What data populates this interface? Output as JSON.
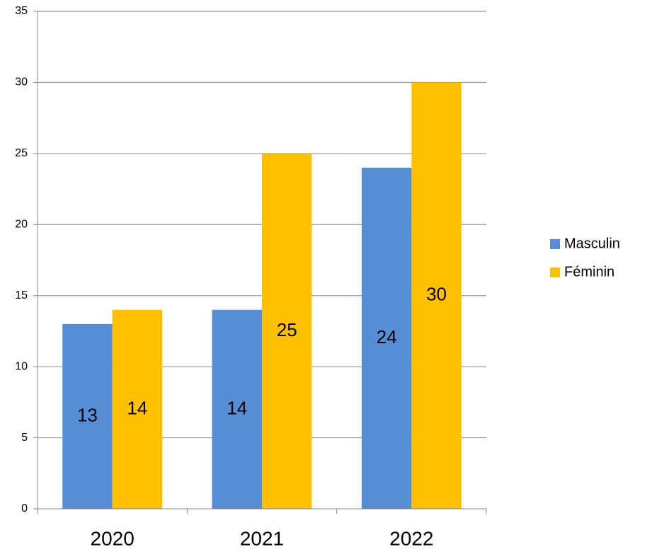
{
  "chart_data": {
    "type": "bar",
    "categories": [
      "2020",
      "2021",
      "2022"
    ],
    "series": [
      {
        "name": "Masculin",
        "color": "#558ed5",
        "values": [
          13,
          14,
          24
        ]
      },
      {
        "name": "Féminin",
        "color": "#ffc000",
        "values": [
          14,
          25,
          30
        ]
      }
    ],
    "ylim": [
      0,
      35
    ],
    "yticks": [
      0,
      5,
      10,
      15,
      20,
      25,
      30,
      35
    ],
    "grid": true,
    "legend": "right"
  }
}
